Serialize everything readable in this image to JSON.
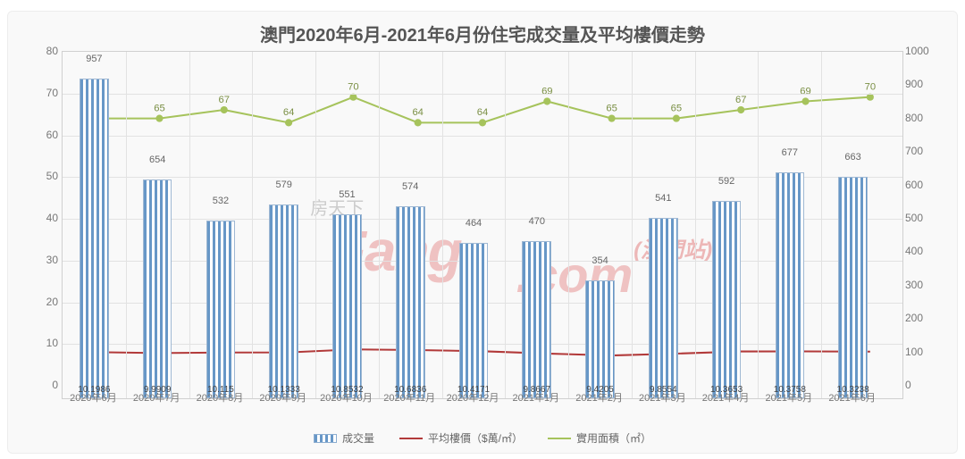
{
  "chart": {
    "type": "bar+line-dual-axis",
    "title": "澳門2020年6月-2021年6月份住宅成交量及平均樓價走勢",
    "title_fontsize": 20,
    "title_color": "#555555",
    "background_color": "#f9f9f9",
    "border_color": "#ededed",
    "grid_color": "#e2e2e2",
    "label_font": "Microsoft YaHei",
    "categories": [
      "2020年6月",
      "2020年7月",
      "2020年8月",
      "2020年9月",
      "2020年10月",
      "2020年11月",
      "2020年12月",
      "2021年1月",
      "2021年2月",
      "2021年3月",
      "2021年4月",
      "2021年5月",
      "2021年6月"
    ],
    "left_axis": {
      "min": 0,
      "max": 80,
      "step": 10,
      "fontsize": 12,
      "color": "#777777"
    },
    "right_axis": {
      "min": 0,
      "max": 1000,
      "step": 100,
      "fontsize": 12,
      "color": "#777777"
    },
    "xtick_fontsize": 11,
    "series": {
      "volume": {
        "name": "成交量",
        "axis": "right",
        "type": "bar",
        "values": [
          957,
          654,
          532,
          579,
          551,
          574,
          464,
          470,
          354,
          541,
          592,
          677,
          663
        ],
        "labels_top": [
          "957",
          "654",
          "532",
          "579",
          "551",
          "574",
          "464",
          "470",
          "",
          "541",
          "592",
          "677",
          "663"
        ],
        "labels_mid": [
          "",
          "",
          "",
          "",
          "",
          "",
          "",
          "",
          "354",
          "",
          "",
          "",
          ""
        ],
        "bar_fill": "#6797c7",
        "bar_hatch_bg": "#ffffff",
        "bar_outline": "#8cadd0",
        "bar_width_ratio": 0.46
      },
      "price": {
        "name": "平均樓價（$萬/㎡）",
        "axis": "left",
        "type": "line",
        "values": [
          10.1986,
          9.9909,
          10.115,
          10.1333,
          10.8532,
          10.6836,
          10.4171,
          9.8667,
          9.4205,
          9.8554,
          10.3653,
          10.3758,
          10.3238
        ],
        "labels": [
          "10.1986",
          "9.9909",
          "10.115",
          "10.1333",
          "10.8532",
          "10.6836",
          "10.4171",
          "9.8667",
          "9.4205",
          "9.8554",
          "10.3653",
          "10.3758",
          "10.3238"
        ],
        "stroke": "#b23a3a",
        "stroke_width": 2
      },
      "area": {
        "name": "實用面積（㎡）",
        "axis": "left",
        "type": "line",
        "values": [
          65,
          65,
          67,
          64,
          70,
          64,
          64,
          69,
          65,
          65,
          67,
          69,
          70
        ],
        "labels": [
          "65",
          "65",
          "67",
          "64",
          "70",
          "64",
          "64",
          "69",
          "65",
          "65",
          "67",
          "69",
          "70"
        ],
        "stroke": "#a6c35c",
        "stroke_width": 2,
        "marker": "circle",
        "marker_fill": "#a6c35c",
        "marker_size": 4,
        "label_color": "#7a8f44",
        "label_fontsize": 11
      }
    },
    "legend": {
      "position": "bottom-center",
      "items": [
        {
          "key": "volume",
          "label": "成交量",
          "swatch": "bar"
        },
        {
          "key": "price",
          "label": "平均樓價（$萬/㎡）",
          "swatch": "line",
          "color": "#b23a3a"
        },
        {
          "key": "area",
          "label": "實用面積（㎡）",
          "swatch": "line",
          "color": "#a6c35c"
        }
      ]
    },
    "watermark": {
      "text": "Fang.com",
      "suffix": "(澳門站)",
      "sub": "房天下",
      "color": "rgba(210,30,30,0.25)"
    }
  }
}
